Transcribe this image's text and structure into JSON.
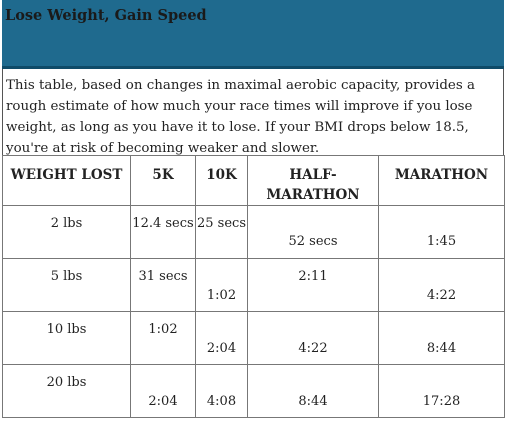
{
  "title": "Lose Weight, Gain Speed",
  "description": "This table, based on changes in maximal aerobic capacity, provides a rough estimate of how much your race times will improve if you lose weight, as long as you have it to lose. If your BMI drops below 18.5, you're at risk of becoming weaker and slower.",
  "headers": [
    "WEIGHT LOST",
    "5K",
    "10K",
    "HALF-MARATHON",
    "MARATHON"
  ],
  "rows": [
    [
      "2 lbs",
      "12.4 secs",
      "25 secs",
      "52 secs",
      "1:45"
    ],
    [
      "5 lbs",
      "31 secs",
      "1:02",
      "2:11",
      "4:22"
    ],
    [
      "10 lbs",
      "1:02",
      "2:04",
      "4:22",
      "8:44"
    ],
    [
      "20 lbs",
      "2:04",
      "4:08",
      "8:44",
      "17:28"
    ]
  ]
}
